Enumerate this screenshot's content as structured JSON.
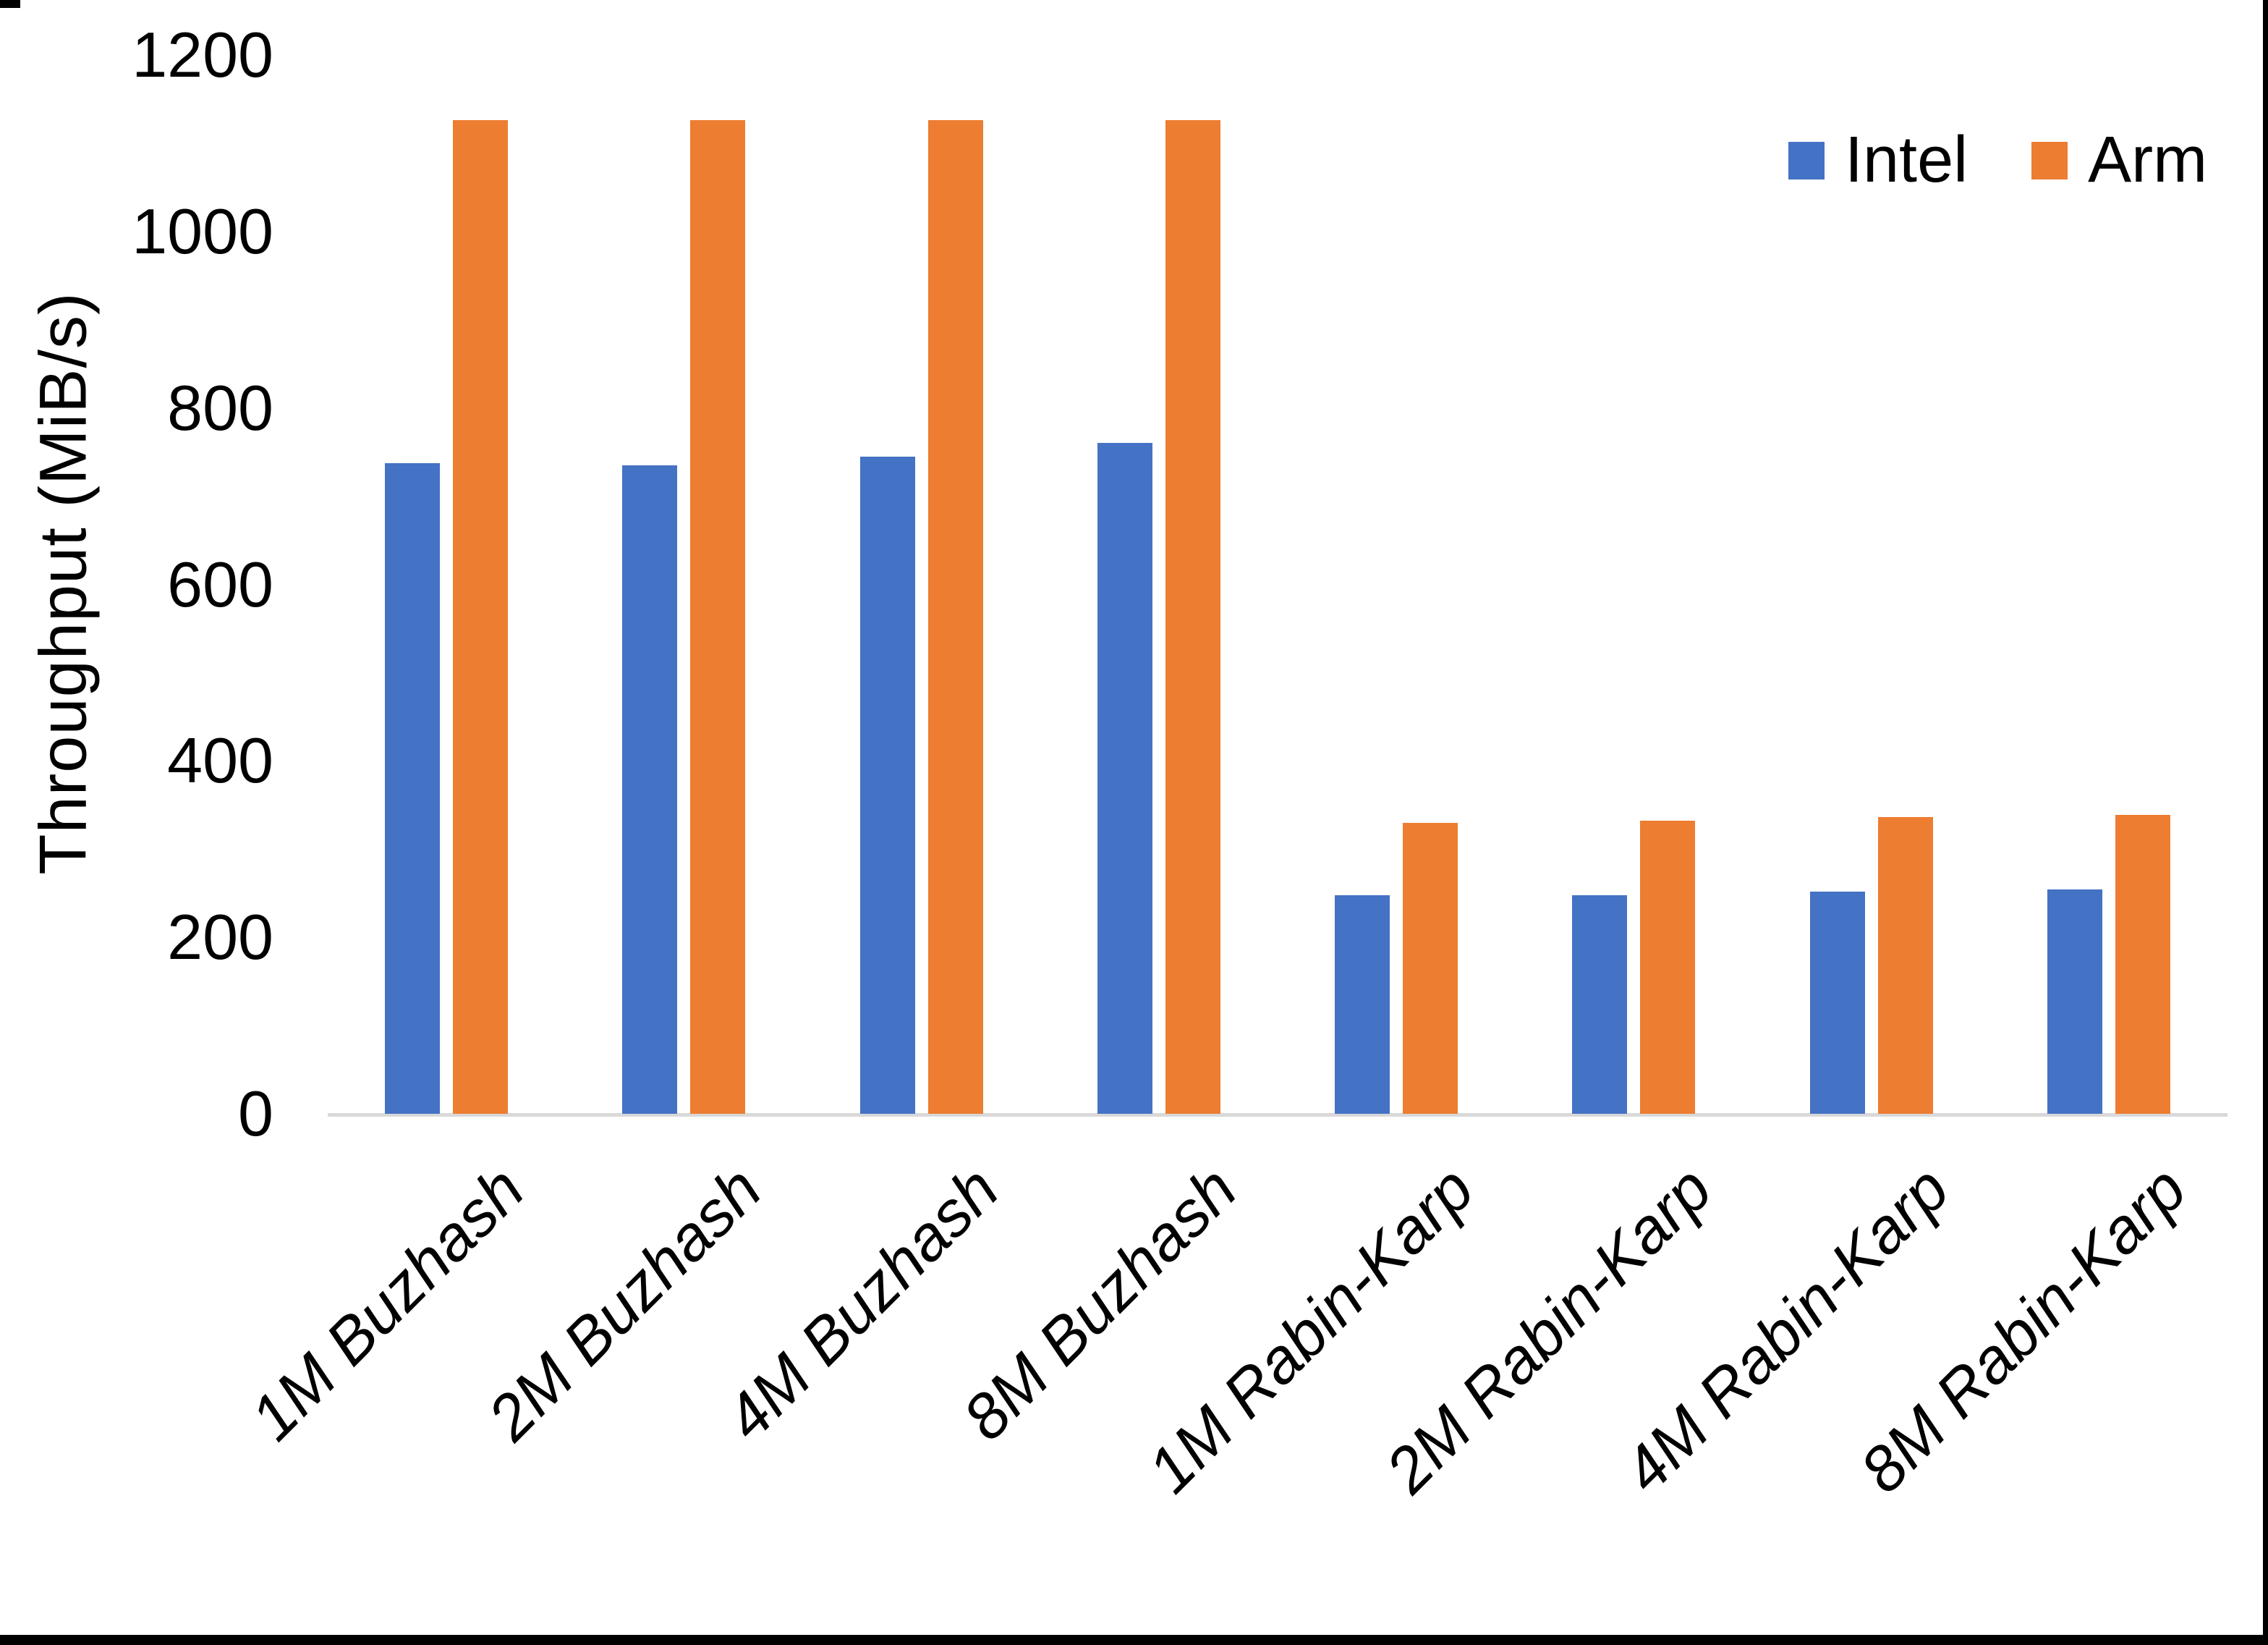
{
  "figure": {
    "background_color": "#FFFFFF",
    "frame_color": "#000000",
    "axis_line_color": "#D9D9D9"
  },
  "chart_data": {
    "type": "bar",
    "title": "",
    "xlabel": "",
    "ylabel": "Throughput (MiB/s)",
    "ylim": [
      0,
      1200
    ],
    "yticks": [
      1200,
      1000,
      800,
      600,
      400,
      200,
      0
    ],
    "grid": false,
    "legend_position": "top-right",
    "categories": [
      "1M Buzhash",
      "2M Buzhash",
      "4M Buzhash",
      "8M Buzhash",
      "1M Rabin-Karp",
      "2M Rabin-Karp",
      "4M Rabin-Karp",
      "8M Rabin-Karp"
    ],
    "series": [
      {
        "name": "Intel",
        "color": "#4472C4",
        "values": [
          737,
          735,
          745,
          760,
          248,
          248,
          252,
          254
        ]
      },
      {
        "name": "Arm",
        "color": "#ED7D31",
        "values": [
          1126,
          1126,
          1126,
          1126,
          330,
          332,
          336,
          339
        ]
      }
    ]
  }
}
